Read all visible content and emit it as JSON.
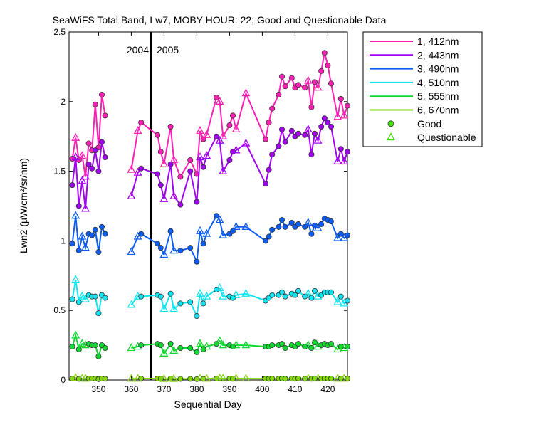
{
  "chart_data": {
    "type": "line",
    "title": "SeaWiFS Total Band, Lw7, MOBY HOUR: 22;  Good and Questionable Data",
    "xlabel": "Sequential Day",
    "ylabel": "Lwn2 (µW/cm²/sr/nm)",
    "xlim": [
      341,
      426
    ],
    "ylim": [
      0,
      2.5
    ],
    "xticks": [
      350,
      360,
      370,
      380,
      390,
      400,
      410,
      420
    ],
    "yticks": [
      0,
      0.5,
      1,
      1.5,
      2,
      2.5
    ],
    "vline": {
      "x": 366,
      "left_label": "2004",
      "right_label": "2005"
    },
    "grid": false,
    "legend_position": "outside-right",
    "legend_good": "Good",
    "legend_questionable": "Questionable",
    "days": [
      342,
      343,
      344,
      345,
      346,
      347,
      348,
      349,
      350,
      351,
      352,
      353,
      360,
      362,
      363,
      368,
      369,
      370,
      372,
      373,
      375,
      378,
      380,
      381,
      382,
      383,
      386,
      387,
      388,
      390,
      391,
      392,
      395,
      401,
      402,
      403,
      405,
      406,
      407,
      409,
      410,
      411,
      413,
      414,
      415,
      416,
      417,
      418,
      419,
      420,
      421,
      423,
      424,
      425,
      426
    ],
    "questionable_days": [
      343,
      345,
      346,
      360,
      362,
      370,
      373,
      381,
      383,
      387,
      388,
      392,
      395,
      414,
      417,
      423,
      425
    ],
    "series": [
      {
        "name": "1, 412nm",
        "color": "#ff1fb4",
        "values": [
          1.59,
          1.74,
          1.58,
          1.61,
          1.46,
          1.7,
          1.65,
          1.98,
          1.67,
          2.05,
          1.9,
          null,
          1.51,
          1.79,
          1.85,
          1.76,
          1.64,
          1.55,
          1.82,
          1.58,
          1.46,
          1.58,
          1.48,
          1.79,
          1.73,
          1.76,
          2.03,
          2.0,
          1.75,
          1.83,
          1.9,
          1.8,
          2.06,
          1.73,
          1.85,
          1.95,
          2.05,
          2.18,
          2.11,
          2.17,
          2.1,
          2.12,
          2.1,
          2.15,
          1.96,
          2.14,
          2.1,
          2.22,
          2.35,
          2.26,
          2.13,
          1.89,
          2.02,
          1.9,
          1.97
        ]
      },
      {
        "name": "2, 443nm",
        "color": "#a100f2",
        "values": [
          1.4,
          1.6,
          1.25,
          1.43,
          1.23,
          1.55,
          1.52,
          1.65,
          1.5,
          1.71,
          1.6,
          null,
          1.32,
          1.49,
          1.52,
          1.48,
          1.4,
          1.3,
          1.55,
          1.32,
          1.26,
          1.5,
          1.28,
          1.6,
          1.53,
          1.61,
          1.75,
          1.72,
          1.5,
          1.58,
          1.64,
          1.65,
          1.7,
          1.41,
          1.51,
          1.62,
          1.68,
          1.8,
          1.71,
          1.79,
          1.75,
          1.77,
          1.76,
          1.8,
          1.62,
          1.77,
          1.72,
          1.82,
          1.88,
          1.85,
          1.82,
          1.57,
          1.66,
          1.57,
          1.64
        ]
      },
      {
        "name": "3, 490nm",
        "color": "#0b5cf5",
        "values": [
          0.98,
          1.18,
          0.93,
          1.03,
          0.95,
          1.05,
          1.04,
          1.08,
          0.92,
          1.1,
          1.05,
          null,
          0.92,
          1.03,
          1.05,
          0.98,
          0.95,
          0.9,
          1.07,
          0.93,
          0.93,
          0.95,
          0.85,
          1.07,
          0.98,
          1.05,
          1.18,
          1.15,
          1.04,
          1.05,
          1.07,
          1.1,
          1.1,
          1.0,
          1.03,
          1.08,
          1.1,
          1.15,
          1.1,
          1.13,
          1.1,
          1.12,
          1.1,
          1.13,
          1.05,
          1.11,
          1.09,
          1.12,
          1.16,
          1.15,
          1.14,
          1.02,
          1.05,
          1.02,
          1.04
        ]
      },
      {
        "name": "4, 510nm",
        "color": "#11e5f2",
        "values": [
          0.58,
          0.72,
          0.56,
          0.6,
          0.58,
          0.61,
          0.6,
          0.6,
          0.48,
          0.61,
          0.59,
          null,
          0.54,
          0.6,
          0.6,
          0.61,
          0.6,
          0.51,
          0.62,
          0.51,
          0.55,
          0.56,
          0.46,
          0.62,
          0.55,
          0.6,
          0.65,
          0.66,
          0.6,
          0.6,
          0.59,
          0.61,
          0.62,
          0.57,
          0.59,
          0.61,
          0.61,
          0.63,
          0.6,
          0.62,
          0.61,
          0.64,
          0.6,
          0.62,
          0.59,
          0.64,
          0.6,
          0.61,
          0.63,
          0.63,
          0.63,
          0.56,
          0.6,
          0.55,
          0.57
        ]
      },
      {
        "name": "5, 555nm",
        "color": "#11d830",
        "values": [
          0.24,
          0.32,
          0.22,
          0.26,
          0.25,
          0.26,
          0.25,
          0.25,
          0.17,
          0.25,
          0.23,
          null,
          0.23,
          0.24,
          0.25,
          0.26,
          0.25,
          0.19,
          0.26,
          0.21,
          0.23,
          0.23,
          0.2,
          0.26,
          0.22,
          0.24,
          0.26,
          0.28,
          0.25,
          0.25,
          0.24,
          0.25,
          0.25,
          0.24,
          0.24,
          0.25,
          0.25,
          0.26,
          0.23,
          0.25,
          0.24,
          0.26,
          0.24,
          0.25,
          0.23,
          0.27,
          0.24,
          0.25,
          0.26,
          0.25,
          0.26,
          0.22,
          0.24,
          0.23,
          0.24
        ]
      },
      {
        "name": "6, 670nm",
        "color": "#85d80b",
        "values": [
          0.01,
          0.015,
          0.008,
          0.01,
          0.009,
          0.01,
          0.01,
          0.01,
          0.006,
          0.01,
          0.009,
          null,
          0.009,
          0.009,
          0.01,
          0.01,
          0.009,
          0.007,
          0.01,
          0.007,
          0.008,
          0.008,
          0.006,
          0.01,
          0.008,
          0.009,
          0.011,
          0.012,
          0.01,
          0.01,
          0.009,
          0.01,
          0.01,
          0.009,
          0.009,
          0.01,
          0.01,
          0.011,
          0.009,
          0.01,
          0.009,
          0.011,
          0.009,
          0.01,
          0.009,
          0.011,
          0.01,
          0.01,
          0.011,
          0.011,
          0.011,
          0.009,
          0.01,
          0.009,
          0.01
        ]
      }
    ]
  }
}
